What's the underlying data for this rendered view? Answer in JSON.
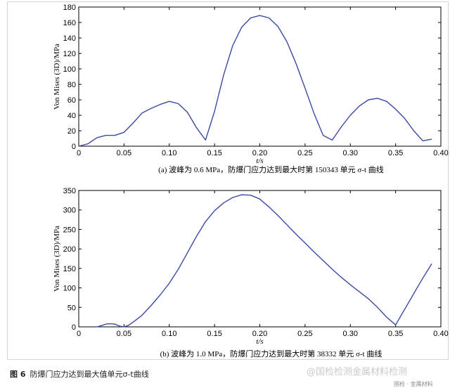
{
  "chart_data": [
    {
      "type": "line",
      "title": "",
      "caption": "(a) 波峰为 0.6 MPa，防爆门应力达到最大时第 150343 单元 σ-t 曲线",
      "xlabel": "t/s",
      "ylabel": "Von Mises (3D)/MPa",
      "xlim": [
        0,
        0.4
      ],
      "ylim": [
        0,
        180
      ],
      "xticks": [
        0,
        0.05,
        0.1,
        0.15,
        0.2,
        0.25,
        0.3,
        0.35,
        0.4
      ],
      "xtick_labels": [
        "0",
        "0.05",
        "0.10",
        "0.15",
        "0.20",
        "0.25",
        "0.30",
        "0.35",
        "0.40"
      ],
      "yticks": [
        0,
        20,
        40,
        60,
        80,
        100,
        120,
        140,
        160,
        180
      ],
      "ytick_labels": [
        "0",
        "20",
        "40",
        "60",
        "80",
        "100",
        "120",
        "140",
        "160",
        "180"
      ],
      "grid": false,
      "series": [
        {
          "x": [
            0,
            0.01,
            0.02,
            0.03,
            0.04,
            0.05,
            0.06,
            0.07,
            0.08,
            0.09,
            0.1,
            0.11,
            0.12,
            0.13,
            0.14,
            0.15,
            0.16,
            0.17,
            0.18,
            0.19,
            0.2,
            0.21,
            0.22,
            0.23,
            0.24,
            0.25,
            0.26,
            0.27,
            0.28,
            0.29,
            0.3,
            0.31,
            0.32,
            0.33,
            0.34,
            0.35,
            0.36,
            0.37,
            0.38,
            0.39
          ],
          "y": [
            0,
            3,
            11,
            14,
            14,
            18,
            30,
            43,
            49,
            54,
            58,
            55,
            44,
            24,
            8,
            45,
            92,
            130,
            154,
            166,
            169,
            166,
            155,
            135,
            107,
            75,
            42,
            14,
            8,
            25,
            40,
            52,
            60,
            62,
            58,
            48,
            36,
            20,
            7,
            9
          ]
        }
      ]
    },
    {
      "type": "line",
      "title": "",
      "caption": "(b) 波峰为 1.0 MPa，防爆门应力达到最大时第 38332 单元 σ-t 曲线",
      "xlabel": "t/s",
      "ylabel": "Von Mises (3D)/MPa",
      "xlim": [
        0,
        0.4
      ],
      "ylim": [
        0,
        350
      ],
      "xticks": [
        0,
        0.05,
        0.1,
        0.15,
        0.2,
        0.25,
        0.3,
        0.35,
        0.4
      ],
      "xtick_labels": [
        "0",
        "0.05",
        "0.10",
        "0.15",
        "0.20",
        "0.25",
        "0.30",
        "0.35",
        "0.40"
      ],
      "yticks": [
        0,
        50,
        100,
        150,
        200,
        250,
        300,
        350
      ],
      "ytick_labels": [
        "0",
        "50",
        "100",
        "150",
        "200",
        "250",
        "300",
        "350"
      ],
      "grid": false,
      "series": [
        {
          "x": [
            0.02,
            0.025,
            0.03,
            0.035,
            0.04,
            0.045,
            0.05,
            0.055,
            0.06,
            0.07,
            0.08,
            0.09,
            0.1,
            0.11,
            0.12,
            0.13,
            0.14,
            0.15,
            0.16,
            0.17,
            0.18,
            0.19,
            0.2,
            0.21,
            0.22,
            0.23,
            0.24,
            0.25,
            0.26,
            0.27,
            0.28,
            0.29,
            0.3,
            0.31,
            0.32,
            0.33,
            0.34,
            0.35,
            0.36,
            0.37,
            0.38,
            0.39
          ],
          "y": [
            0,
            3,
            7,
            8,
            7,
            2,
            0,
            4,
            12,
            30,
            55,
            82,
            112,
            148,
            190,
            232,
            270,
            298,
            318,
            332,
            339,
            338,
            328,
            308,
            286,
            262,
            238,
            215,
            192,
            170,
            148,
            127,
            108,
            90,
            72,
            50,
            25,
            5,
            45,
            85,
            125,
            162
          ]
        }
      ]
    }
  ],
  "figure_caption": {
    "number": "图 6",
    "text": "防爆门应力达到最大值单元σ-t曲线"
  },
  "watermark": "@国检检测金属材料检测",
  "corner_text": "国检 · 金属材料"
}
